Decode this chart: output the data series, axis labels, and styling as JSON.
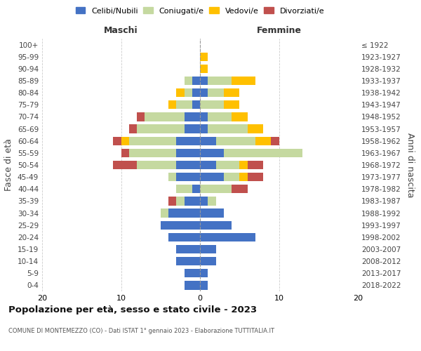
{
  "age_groups": [
    "0-4",
    "5-9",
    "10-14",
    "15-19",
    "20-24",
    "25-29",
    "30-34",
    "35-39",
    "40-44",
    "45-49",
    "50-54",
    "55-59",
    "60-64",
    "65-69",
    "70-74",
    "75-79",
    "80-84",
    "85-89",
    "90-94",
    "95-99",
    "100+"
  ],
  "birth_years": [
    "2018-2022",
    "2013-2017",
    "2008-2012",
    "2003-2007",
    "1998-2002",
    "1993-1997",
    "1988-1992",
    "1983-1987",
    "1978-1982",
    "1973-1977",
    "1968-1972",
    "1963-1967",
    "1958-1962",
    "1953-1957",
    "1948-1952",
    "1943-1947",
    "1938-1942",
    "1933-1937",
    "1928-1932",
    "1923-1927",
    "≤ 1922"
  ],
  "colors": {
    "celibi": "#4472c4",
    "coniugati": "#c5d9a0",
    "vedovi": "#ffc000",
    "divorziati": "#c0504d"
  },
  "maschi": {
    "celibi": [
      2,
      2,
      3,
      3,
      4,
      5,
      4,
      2,
      1,
      3,
      3,
      3,
      3,
      2,
      2,
      1,
      1,
      1,
      0,
      0,
      0
    ],
    "coniugati": [
      0,
      0,
      0,
      0,
      0,
      0,
      1,
      1,
      2,
      1,
      5,
      6,
      6,
      6,
      5,
      2,
      1,
      1,
      0,
      0,
      0
    ],
    "vedovi": [
      0,
      0,
      0,
      0,
      0,
      0,
      0,
      0,
      0,
      0,
      0,
      0,
      1,
      0,
      0,
      1,
      1,
      0,
      0,
      0,
      0
    ],
    "divorziati": [
      0,
      0,
      0,
      0,
      0,
      0,
      0,
      1,
      0,
      0,
      3,
      1,
      1,
      1,
      1,
      0,
      0,
      0,
      0,
      0,
      0
    ]
  },
  "femmine": {
    "celibi": [
      1,
      1,
      2,
      2,
      7,
      4,
      3,
      1,
      0,
      3,
      2,
      3,
      2,
      1,
      1,
      0,
      1,
      1,
      0,
      0,
      0
    ],
    "coniugati": [
      0,
      0,
      0,
      0,
      0,
      0,
      0,
      1,
      4,
      2,
      3,
      10,
      5,
      5,
      3,
      3,
      2,
      3,
      0,
      0,
      0
    ],
    "vedovi": [
      0,
      0,
      0,
      0,
      0,
      0,
      0,
      0,
      0,
      1,
      1,
      0,
      2,
      2,
      2,
      2,
      2,
      3,
      1,
      1,
      0
    ],
    "divorziati": [
      0,
      0,
      0,
      0,
      0,
      0,
      0,
      0,
      2,
      2,
      2,
      0,
      1,
      0,
      0,
      0,
      0,
      0,
      0,
      0,
      0
    ]
  },
  "xlim": 20,
  "title": "Popolazione per età, sesso e stato civile - 2023",
  "subtitle": "COMUNE DI MONTEMEZZO (CO) - Dati ISTAT 1° gennaio 2023 - Elaborazione TUTTITALIA.IT",
  "ylabel_left": "Fasce di età",
  "ylabel_right": "Anni di nascita",
  "xlabel_left": "Maschi",
  "xlabel_right": "Femmine",
  "legend_labels": [
    "Celibi/Nubili",
    "Coniugati/e",
    "Vedovi/e",
    "Divorziati/e"
  ],
  "bg_color": "#ffffff",
  "grid_color": "#cccccc"
}
